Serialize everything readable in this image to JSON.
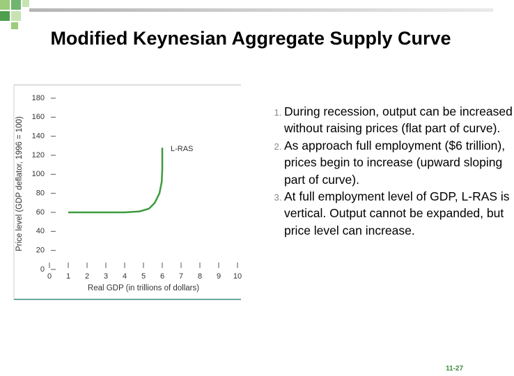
{
  "title": "Modified Keynesian Aggregate Supply Curve",
  "chart_data": {
    "type": "line",
    "xlabel": "Real GDP (in trillions of dollars)",
    "ylabel": "Price level (GDP deflator, 1996 = 100)",
    "x": [
      1,
      2,
      3,
      4,
      4.8,
      5.3,
      5.6,
      5.85,
      5.97,
      6,
      6
    ],
    "series": [
      {
        "name": "L-RAS",
        "color": "#3d9a3d",
        "values": [
          60,
          60,
          60,
          60,
          61,
          64,
          70,
          80,
          92,
          105,
          128
        ]
      }
    ],
    "xlim": [
      0,
      10
    ],
    "ylim": [
      0,
      180
    ],
    "xticks": [
      0,
      1,
      2,
      3,
      4,
      5,
      6,
      7,
      8,
      9,
      10
    ],
    "yticks": [
      0,
      20,
      40,
      60,
      80,
      100,
      120,
      140,
      160,
      180
    ]
  },
  "list": [
    "During recession, output can be increased without raising prices (flat part of curve).",
    "As approach full employment ($6 trillion), prices begin to increase (upward sloping part of curve).",
    "At full employment level of GDP, L-RAS is vertical. Output cannot be expanded, but price level can increase."
  ],
  "page_number": "11-27"
}
